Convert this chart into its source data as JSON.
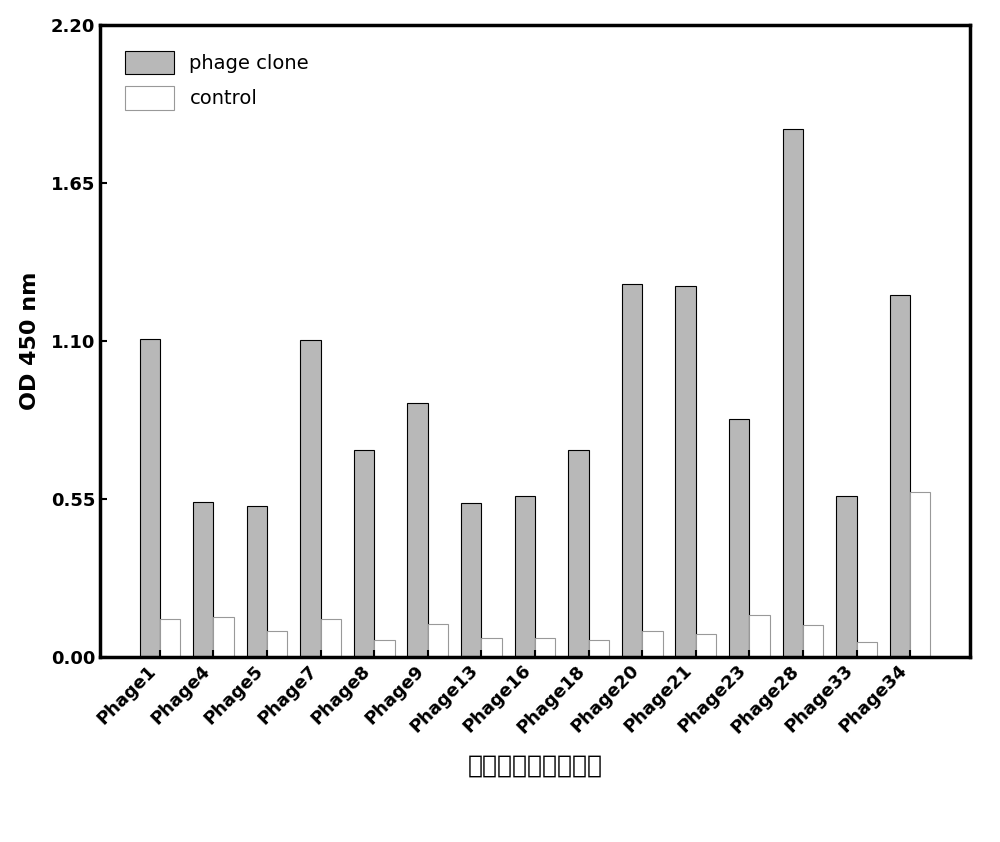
{
  "categories": [
    "Phage1",
    "Phage4",
    "Phage5",
    "Phage7",
    "Phage8",
    "Phage9",
    "Phage13",
    "Phage16",
    "Phage18",
    "Phage20",
    "Phage21",
    "Phage23",
    "Phage28",
    "Phage33",
    "Phage34"
  ],
  "phage_clone_values": [
    1.108,
    0.54,
    0.525,
    1.102,
    0.72,
    0.885,
    0.535,
    0.56,
    0.72,
    1.3,
    1.29,
    0.83,
    1.84,
    0.56,
    1.26
  ],
  "control_values": [
    0.13,
    0.14,
    0.09,
    0.13,
    0.06,
    0.115,
    0.065,
    0.065,
    0.06,
    0.09,
    0.08,
    0.145,
    0.11,
    0.05,
    0.575
  ],
  "phage_clone_color": "#b8b8b8",
  "control_color": "#ffffff",
  "control_edgecolor": "#999999",
  "ylabel": "OD 450 nm",
  "xlabel": "噬菌体展示纳米抗体",
  "ylim": [
    0.0,
    2.2
  ],
  "yticks": [
    0.0,
    0.55,
    1.1,
    1.65,
    2.2
  ],
  "legend_labels": [
    "phage clone",
    "control"
  ],
  "bar_width": 0.38,
  "figsize": [
    10.0,
    8.42
  ],
  "dpi": 100,
  "label_fontsize": 16,
  "tick_fontsize": 13,
  "legend_fontsize": 14,
  "xlabel_fontsize": 18
}
